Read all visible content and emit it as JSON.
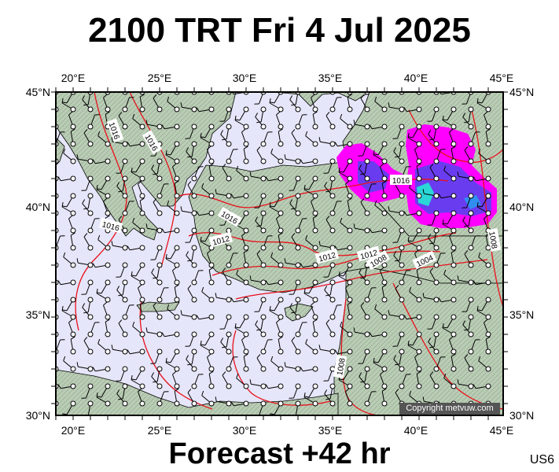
{
  "title": "2100 TRT Fri 4 Jul 2025",
  "footer": "Forecast +42 hr",
  "code": "US6",
  "copyright": "Copyright metvuw.com",
  "axes": {
    "lon_labels": [
      "20°E",
      "25°E",
      "30°E",
      "35°E",
      "40°E",
      "45°E"
    ],
    "lat_labels": [
      "45°N",
      "40°N",
      "35°N",
      "30°N"
    ]
  },
  "isobar_labels": [
    "1016",
    "1016",
    "1016",
    "1016",
    "1016",
    "1012",
    "1012",
    "1012",
    "1008",
    "1008",
    "1004",
    "1008"
  ],
  "colors": {
    "sea": "#e6e6fa",
    "land": "#b5c9b1",
    "isobar": "#e8101a",
    "precip_low": "#ff00ff",
    "precip_mid": "#6a3cf0",
    "precip_high": "#20d0d0"
  },
  "legend_icons": [
    "wind-barb-icon"
  ]
}
